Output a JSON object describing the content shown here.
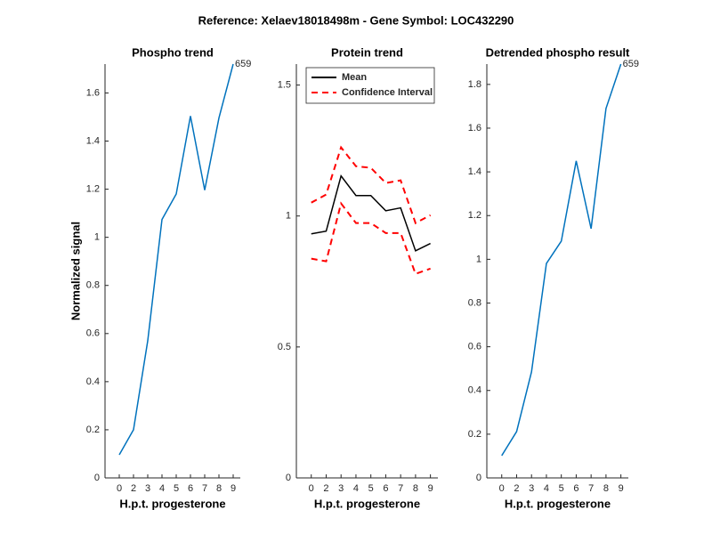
{
  "title": "Reference:  Xelaev18018498m - Gene Symbol:  LOC432290",
  "chart_data": [
    {
      "type": "line",
      "title": "Phospho trend",
      "xlabel": "H.p.t. progesterone",
      "ylabel": "Normalized signal",
      "categories": [
        "0",
        "2",
        "3",
        "4",
        "5",
        "6",
        "7",
        "8",
        "9"
      ],
      "values": [
        0.096,
        0.2,
        0.57,
        1.074,
        1.18,
        1.504,
        1.196,
        1.496,
        1.72
      ],
      "color": "#0072bd",
      "annotation": "659",
      "ylim": [
        0,
        1.72
      ],
      "yticks": [
        0,
        0.2,
        0.4,
        0.6,
        0.8,
        1,
        1.2,
        1.4,
        1.6
      ]
    },
    {
      "type": "band-line",
      "title": "Protein trend",
      "xlabel": "H.p.t. progesterone",
      "categories": [
        "0",
        "2",
        "3",
        "4",
        "5",
        "6",
        "7",
        "8",
        "9"
      ],
      "series": [
        {
          "name": "Mean",
          "color": "#000000",
          "values": [
            0.932,
            0.942,
            1.153,
            1.078,
            1.078,
            1.02,
            1.031,
            0.867,
            0.895
          ]
        },
        {
          "name": "Confidence Interval",
          "color": "#ff0000",
          "dashed": true,
          "upper": [
            1.051,
            1.082,
            1.262,
            1.19,
            1.184,
            1.126,
            1.136,
            0.973,
            1.003
          ],
          "lower": [
            0.837,
            0.827,
            1.048,
            0.973,
            0.973,
            0.935,
            0.935,
            0.779,
            0.799
          ]
        }
      ],
      "ylim": [
        0,
        1.58
      ],
      "yticks": [
        0,
        0.5,
        1,
        1.5
      ],
      "legend": "top-right"
    },
    {
      "type": "line",
      "title": "Detrended phospho result",
      "xlabel": "H.p.t. progesterone",
      "categories": [
        "0",
        "2",
        "3",
        "4",
        "5",
        "6",
        "7",
        "8",
        "9"
      ],
      "values": [
        0.102,
        0.212,
        0.485,
        0.981,
        1.083,
        1.45,
        1.14,
        1.69,
        1.893
      ],
      "color": "#0072bd",
      "annotation": "659",
      "ylim": [
        0,
        1.893
      ],
      "yticks": [
        0,
        0.2,
        0.4,
        0.6,
        0.8,
        1,
        1.2,
        1.4,
        1.6,
        1.8
      ]
    }
  ]
}
